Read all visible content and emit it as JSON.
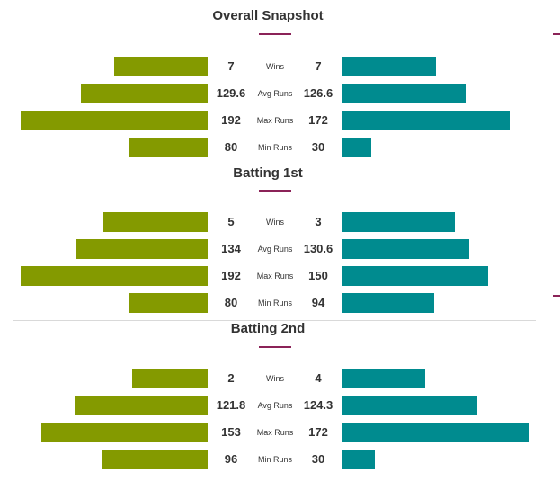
{
  "colors": {
    "left_bar": "#849a00",
    "right_bar": "#008b8f",
    "accent": "#8b2358"
  },
  "sections": [
    {
      "title": "Overall Snapshot",
      "rows": [
        {
          "metric": "Wins",
          "left": "7",
          "right": "7"
        },
        {
          "metric": "Avg Runs",
          "left": "129.6",
          "right": "126.6"
        },
        {
          "metric": "Max Runs",
          "left": "192",
          "right": "172"
        },
        {
          "metric": "Min Runs",
          "left": "80",
          "right": "30"
        }
      ]
    },
    {
      "title": "Batting 1st",
      "rows": [
        {
          "metric": "Wins",
          "left": "5",
          "right": "3"
        },
        {
          "metric": "Avg Runs",
          "left": "134",
          "right": "130.6"
        },
        {
          "metric": "Max Runs",
          "left": "192",
          "right": "150"
        },
        {
          "metric": "Min Runs",
          "left": "80",
          "right": "94"
        }
      ]
    },
    {
      "title": "Batting 2nd",
      "rows": [
        {
          "metric": "Wins",
          "left": "2",
          "right": "4"
        },
        {
          "metric": "Avg Runs",
          "left": "121.8",
          "right": "124.3"
        },
        {
          "metric": "Max Runs",
          "left": "153",
          "right": "172"
        },
        {
          "metric": "Min Runs",
          "left": "96",
          "right": "30"
        }
      ]
    }
  ]
}
